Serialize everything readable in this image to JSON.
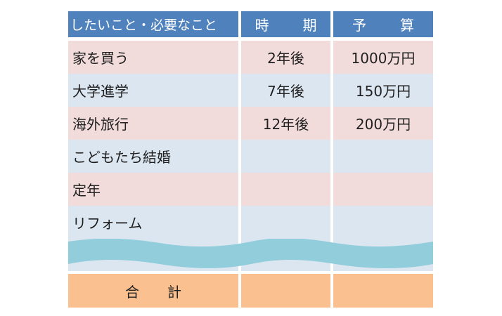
{
  "table": {
    "headers": [
      "したいこと・必要なこと",
      "時　期",
      "予　算"
    ],
    "rows": [
      {
        "item": "家を買う",
        "time": "2年後",
        "budget": "1000万円"
      },
      {
        "item": "大学進学",
        "time": "7年後",
        "budget": "150万円"
      },
      {
        "item": "海外旅行",
        "time": "12年後",
        "budget": "200万円"
      },
      {
        "item": "こどもたち結婚",
        "time": "",
        "budget": ""
      },
      {
        "item": "定年",
        "time": "",
        "budget": ""
      },
      {
        "item": "リフォーム",
        "time": "",
        "budget": ""
      }
    ],
    "total_label": "合計",
    "total_time": "",
    "total_budget": ""
  },
  "colors": {
    "header": "#4f81bd",
    "row_pink": "#f2dcdb",
    "row_blue": "#dce6f1",
    "wave": "#92cddc",
    "total": "#fac090"
  }
}
